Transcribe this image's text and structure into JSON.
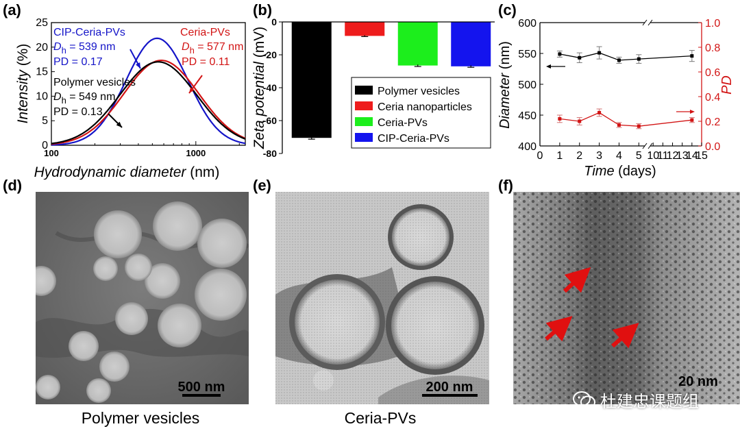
{
  "panels": {
    "a": {
      "letter": "(a)"
    },
    "b": {
      "letter": "(b)"
    },
    "c": {
      "letter": "(c)"
    },
    "d": {
      "letter": "(d)",
      "caption": "Polymer vesicles",
      "scale": "500 nm"
    },
    "e": {
      "letter": "(e)",
      "caption": "Ceria-PVs",
      "scale": "200 nm"
    },
    "f": {
      "letter": "(f)",
      "scale": "20 nm"
    }
  },
  "watermark": {
    "text": "杜建忠课题组",
    "icon": "wechat-icon"
  },
  "chart_data": [
    {
      "id": "a",
      "type": "line",
      "xlabel_italic": "Hydrodynamic diameter",
      "xlabel_unit": "(nm)",
      "ylabel_italic": "Intensity",
      "ylabel_unit": "(%)",
      "xscale": "log",
      "xlim": [
        100,
        2200
      ],
      "ylim": [
        0,
        25
      ],
      "xticks": [
        100,
        1000
      ],
      "yticks": [
        0,
        5,
        10,
        15,
        20,
        25
      ],
      "series": [
        {
          "name": "CIP-Ceria-PVs",
          "color": "#1414c8",
          "mean": 539,
          "peak": 21.8,
          "sigma": 0.215,
          "annotation": [
            "CIP-Ceria-PVs",
            "D",
            "h",
            "= 539 nm",
            "PD = 0.17"
          ]
        },
        {
          "name": "Ceria-PVs",
          "color": "#d21414",
          "mean": 577,
          "peak": 17.3,
          "sigma": 0.26,
          "annotation": [
            "Ceria-PVs",
            "D",
            "h",
            "= 577 nm",
            "PD = 0.11"
          ]
        },
        {
          "name": "Polymer vesicles",
          "color": "#000000",
          "mean": 549,
          "peak": 17.0,
          "sigma": 0.265,
          "annotation": [
            "Polymer vesicles",
            "D",
            "h",
            "= 549 nm",
            "PD = 0.13"
          ]
        }
      ]
    },
    {
      "id": "b",
      "type": "bar",
      "ylabel_italic": "Zeta potential",
      "ylabel_unit": "(mV)",
      "ylim": [
        -80,
        0
      ],
      "yticks": [
        0,
        -20,
        -40,
        -60,
        -80
      ],
      "categories": [
        "Polymer vesicles",
        "Ceria nanoparticles",
        "Ceria-PVs",
        "CIP-Ceria-PVs"
      ],
      "values": [
        -70.5,
        -8.5,
        -26.5,
        -27.0
      ],
      "errors": [
        0.8,
        0.4,
        0.6,
        0.6
      ],
      "colors": [
        "#000000",
        "#ee1c1c",
        "#1cee1c",
        "#1414ee"
      ],
      "legend": "bottom-right"
    },
    {
      "id": "c",
      "type": "line",
      "xlabel_italic": "Time",
      "xlabel_unit": "(days)",
      "ylabel_italic": "Diameter",
      "ylabel_unit": "(nm)",
      "y2label": "PD",
      "xlim": [
        0,
        15
      ],
      "xticks": [
        0,
        1,
        2,
        3,
        4,
        5,
        10,
        11,
        12,
        13,
        14,
        15
      ],
      "ylim": [
        400,
        600
      ],
      "yticks": [
        400,
        450,
        500,
        550,
        600
      ],
      "y2lim": [
        0.0,
        1.0
      ],
      "y2ticks": [
        0.0,
        0.2,
        0.4,
        0.6,
        0.8,
        1.0
      ],
      "series": [
        {
          "name": "Diameter",
          "axis": "left",
          "color": "#000000",
          "x": [
            1,
            2,
            3,
            4,
            5,
            14
          ],
          "y": [
            549,
            543,
            551,
            539,
            541,
            546
          ],
          "err": [
            5,
            8,
            10,
            5,
            7,
            9
          ]
        },
        {
          "name": "PD",
          "axis": "right",
          "color": "#d21414",
          "x": [
            1,
            2,
            3,
            4,
            5,
            14
          ],
          "y": [
            0.22,
            0.2,
            0.27,
            0.17,
            0.16,
            0.21
          ],
          "err": [
            0.03,
            0.03,
            0.03,
            0.02,
            0.02,
            0.02
          ]
        }
      ]
    }
  ]
}
